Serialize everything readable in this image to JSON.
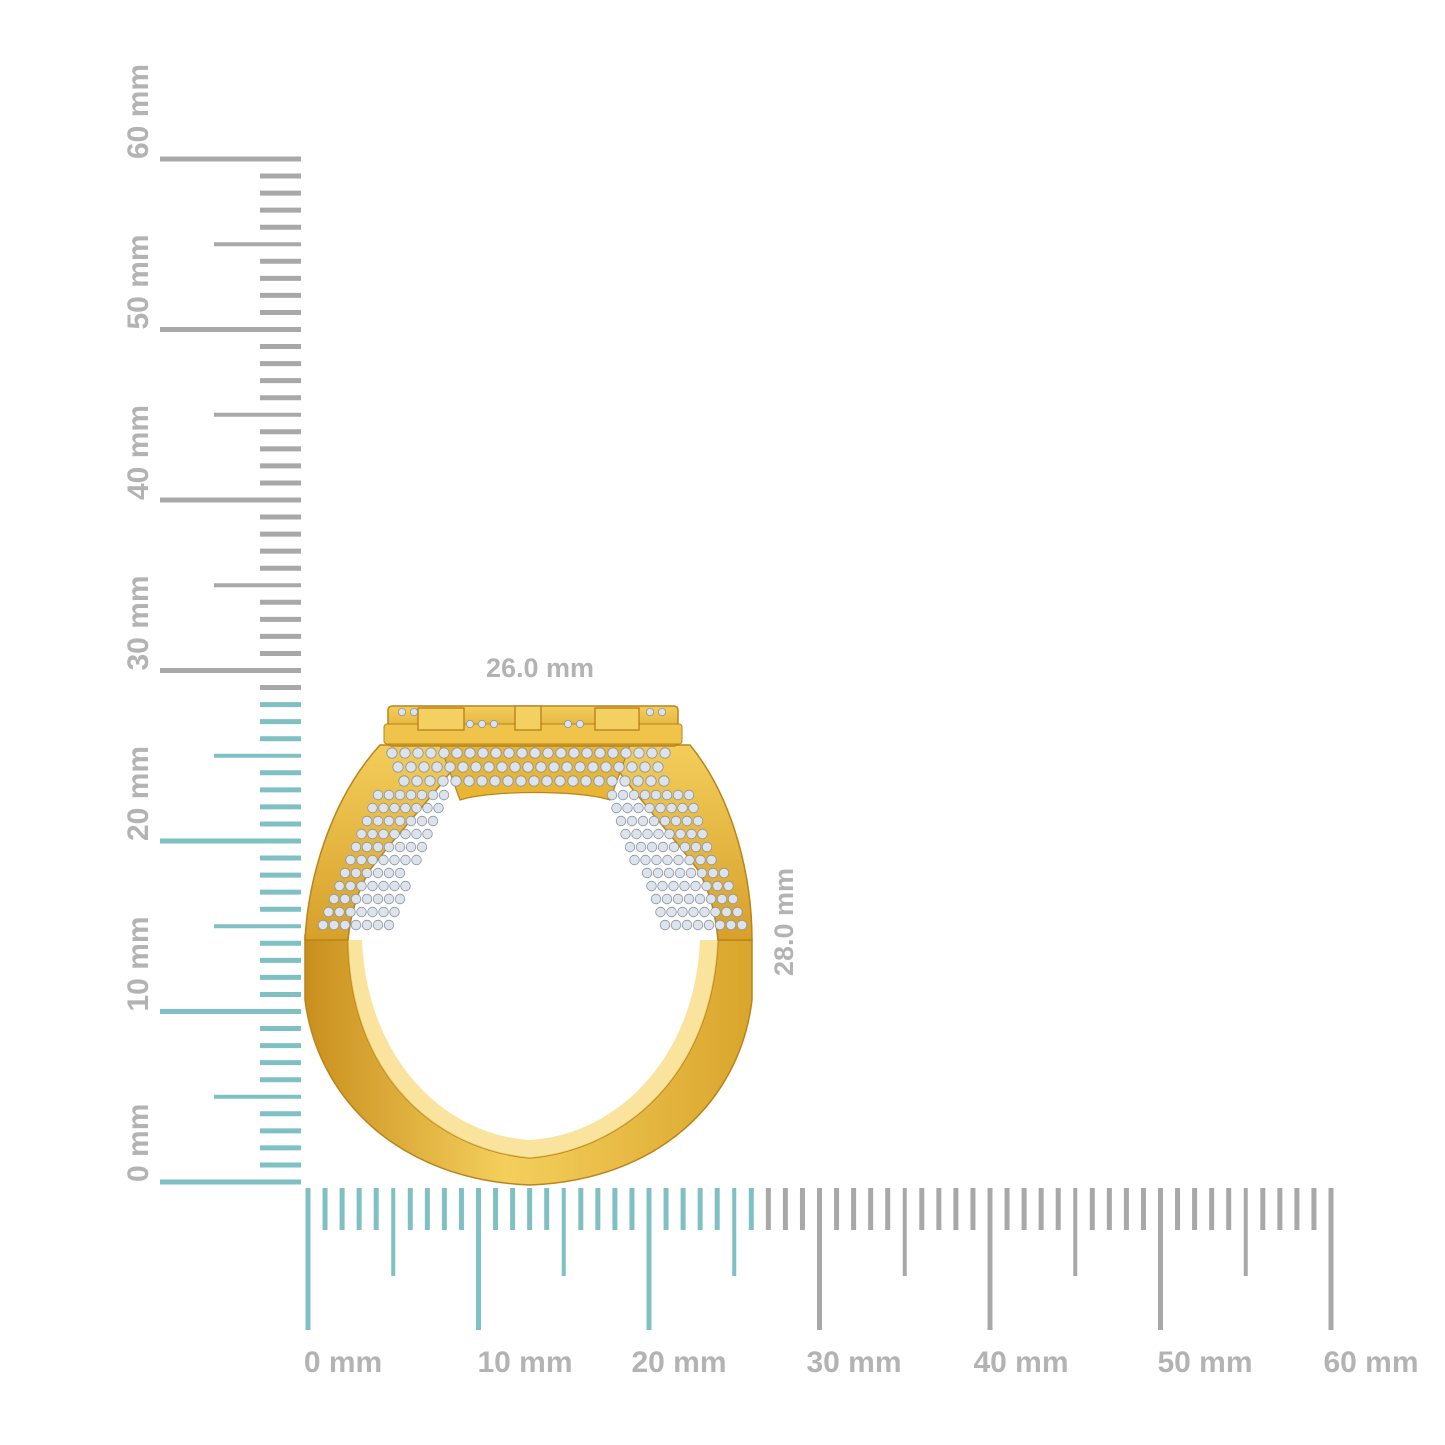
{
  "ruler_unit": "mm",
  "vertical_ruler": {
    "labels": [
      "0 mm",
      "10 mm",
      "20 mm",
      "30 mm",
      "40 mm",
      "50 mm",
      "60 mm"
    ],
    "highlighted_range_mm": [
      0,
      28
    ]
  },
  "horizontal_ruler": {
    "labels": [
      "0 mm",
      "10 mm",
      "20 mm",
      "30 mm",
      "40 mm",
      "50 mm",
      "60 mm"
    ],
    "highlighted_range_mm": [
      0,
      26
    ]
  },
  "dimensions": {
    "width_label": "26.0 mm",
    "height_label": "28.0 mm"
  },
  "colors": {
    "tick_gray": "#a8a8a8",
    "tick_teal": "#7fc1c3",
    "label_gray": "#b3b3b3",
    "gold_light": "#f6cf5a",
    "gold_mid": "#e9b534",
    "gold_dark": "#c18a1c",
    "diamond": "#dde3ea"
  },
  "product": {
    "subject": "ring-icon"
  }
}
